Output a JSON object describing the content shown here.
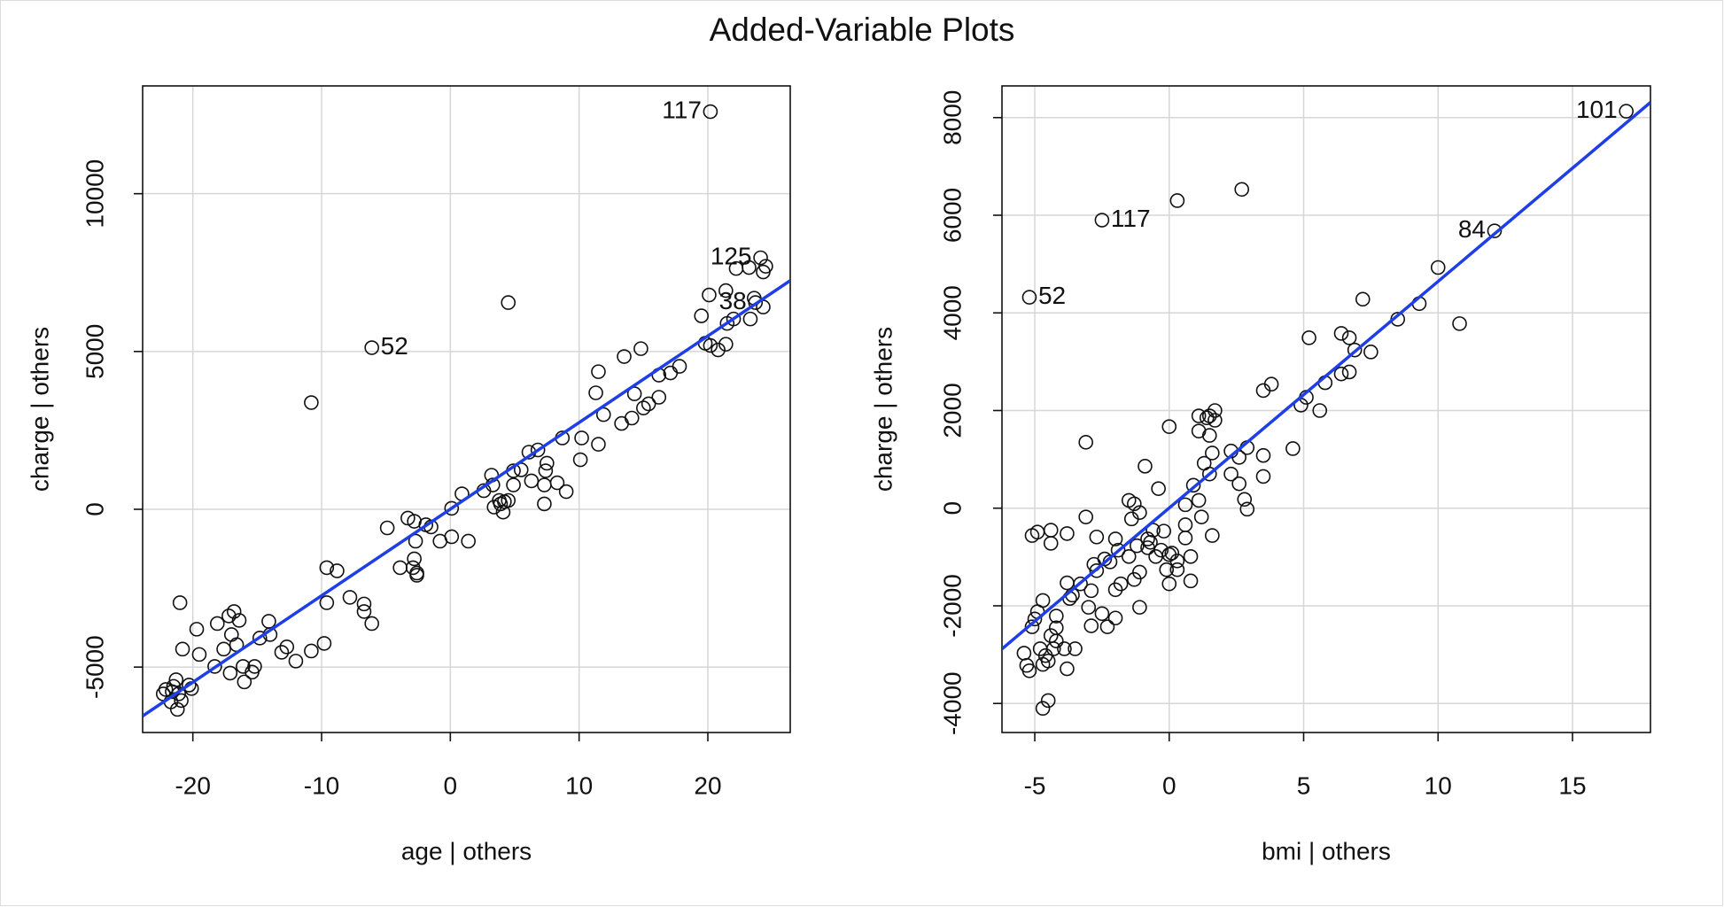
{
  "title": "Added-Variable Plots",
  "chart_data": [
    {
      "type": "scatter",
      "xlabel": "age | others",
      "ylabel": "charge  | others",
      "xlim": [
        -23.9,
        26.4
      ],
      "ylim": [
        -7073,
        13415
      ],
      "xticks": [
        -20,
        -10,
        0,
        10,
        20
      ],
      "yticks": [
        -5000,
        0,
        5000,
        10000
      ],
      "grid": true,
      "color": "#111111",
      "x": [
        20.2,
        -6.1,
        24.1,
        23.7,
        4.5,
        -10.8,
        23.2,
        22.2,
        24.5,
        24.3,
        21.4,
        20.1,
        23.6,
        19.5,
        21.5,
        24.3,
        23.3,
        22.0,
        19.8,
        20.2,
        20.8,
        21.4,
        14.8,
        13.5,
        11.5,
        17.8,
        17.1,
        16.2,
        11.3,
        14.3,
        16.2,
        15.4,
        15.0,
        11.9,
        14.1,
        13.3,
        11.5,
        10.2,
        8.7,
        10.1,
        6.8,
        6.1,
        4.9,
        5.5,
        7.5,
        7.4,
        8.3,
        6.3,
        7.3,
        4.9,
        3.2,
        3.3,
        2.6,
        9.0,
        0.9,
        3.8,
        4.2,
        4.5,
        3.4,
        3.9,
        4.1,
        7.3,
        0.1,
        1.4,
        0.1,
        -0.8,
        -3.3,
        -2.8,
        -1.9,
        -1.5,
        -4.9,
        -2.7,
        -2.8,
        -3.9,
        -2.9,
        -2.6,
        -2.6,
        -9.6,
        -8.8,
        -9.6,
        -7.8,
        -6.7,
        -6.7,
        -6.1,
        -9.8,
        -10.8,
        -12.0,
        -12.7,
        -13.1,
        -14.1,
        -14.0,
        -14.8,
        -15.2,
        -16.1,
        -16.0,
        -15.4,
        -16.8,
        -17.2,
        -16.4,
        -17.0,
        -16.6,
        -17.6,
        -18.1,
        -18.3,
        -17.1,
        -19.7,
        -19.5,
        -21.0,
        -20.8,
        -21.3,
        -20.3,
        -20.1,
        -21.1,
        -22.1,
        -22.3,
        -21.6,
        -21.7,
        -20.9,
        -21.2,
        -21.5
      ],
      "values": [
        12600,
        5120,
        7970,
        6550,
        6550,
        3380,
        7660,
        7630,
        7700,
        7520,
        6930,
        6790,
        6690,
        6130,
        5890,
        6410,
        6030,
        6030,
        5260,
        5190,
        5050,
        5230,
        5090,
        4840,
        4360,
        4530,
        4320,
        4250,
        3690,
        3660,
        3550,
        3340,
        3210,
        3000,
        2890,
        2720,
        2060,
        2260,
        2260,
        1570,
        1880,
        1810,
        1220,
        1250,
        1460,
        1220,
        840,
        900,
        770,
        770,
        1080,
        770,
        590,
        560,
        490,
        280,
        240,
        280,
        70,
        170,
        -90,
        170,
        30,
        -1010,
        -870,
        -1010,
        -280,
        -380,
        -490,
        -560,
        -590,
        -1010,
        -1570,
        -1850,
        -1850,
        -2020,
        -2090,
        -1850,
        -1950,
        -2960,
        -2790,
        -3000,
        -3240,
        -3620,
        -4250,
        -4490,
        -4810,
        -4360,
        -4530,
        -3550,
        -3970,
        -4080,
        -4980,
        -4980,
        -5470,
        -5160,
        -3240,
        -3380,
        -3520,
        -3970,
        -4290,
        -4430,
        -3620,
        -4980,
        -5190,
        -3800,
        -4600,
        -2960,
        -4430,
        -5400,
        -5570,
        -5680,
        -5850,
        -5710,
        -5850,
        -5780,
        -6100,
        -6060,
        -6340,
        -5610
      ],
      "labels": [
        "117",
        "52",
        "125",
        "38",
        null,
        null,
        null,
        null,
        null,
        null,
        null,
        null,
        null,
        null,
        null,
        null,
        null,
        null,
        null,
        null,
        null,
        null,
        null,
        null,
        null,
        null,
        null,
        null,
        null,
        null,
        null,
        null,
        null,
        null,
        null,
        null,
        null,
        null,
        null,
        null,
        null,
        null,
        null,
        null,
        null,
        null,
        null,
        null,
        null,
        null,
        null,
        null,
        null,
        null,
        null,
        null,
        null,
        null,
        null,
        null,
        null,
        null,
        null,
        null,
        null,
        null,
        null,
        null,
        null,
        null,
        null,
        null,
        null,
        null,
        null,
        null,
        null,
        null,
        null,
        null,
        null,
        null,
        null,
        null,
        null,
        null,
        null,
        null,
        null,
        null,
        null,
        null,
        null,
        null,
        null,
        null,
        null,
        null,
        null,
        null,
        null,
        null,
        null,
        null,
        null,
        null,
        null,
        null,
        null,
        null,
        null,
        null,
        null,
        null,
        null,
        null,
        null,
        null,
        null,
        null
      ],
      "fit_line": {
        "x": [
          -23.9,
          26.4
        ],
        "values": [
          -6550,
          7247
        ],
        "color": "#1f3fe6"
      }
    },
    {
      "type": "scatter",
      "xlabel": "bmi | others",
      "ylabel": "charge  | others",
      "xlim": [
        -6.22,
        17.9
      ],
      "ylim": [
        -4595,
        8649
      ],
      "xticks": [
        -5,
        0,
        5,
        10,
        15
      ],
      "yticks": [
        -4000,
        -2000,
        0,
        2000,
        4000,
        6000,
        8000
      ],
      "grid": true,
      "color": "#111111",
      "x": [
        17.0,
        -2.5,
        12.1,
        -5.2,
        0.3,
        2.7,
        10.0,
        7.2,
        9.3,
        10.8,
        8.5,
        5.2,
        6.4,
        6.7,
        6.9,
        7.5,
        6.7,
        6.4,
        5.8,
        3.8,
        3.5,
        5.1,
        4.9,
        5.6,
        4.6,
        1.7,
        1.5,
        1.1,
        1.7,
        1.4,
        0.0,
        1.1,
        1.5,
        -3.1,
        1.6,
        2.3,
        2.9,
        3.5,
        2.6,
        1.3,
        -0.9,
        1.5,
        2.3,
        3.5,
        0.9,
        2.6,
        -0.4,
        2.8,
        1.1,
        -1.5,
        -1.3,
        0.6,
        2.9,
        -1.1,
        -1.4,
        1.2,
        -3.1,
        0.6,
        1.6,
        -4.9,
        -5.1,
        -4.4,
        -3.8,
        -4.4,
        0.6,
        -2.7,
        -2.0,
        -0.6,
        -0.2,
        -0.8,
        -0.7,
        -0.8,
        -1.2,
        -1.9,
        -1.5,
        -2.4,
        -2.8,
        -2.7,
        -2.2,
        -0.3,
        0.0,
        0.3,
        0.1,
        -0.5,
        -0.1,
        0.3,
        0.8,
        0.8,
        -1.1,
        -1.3,
        0.0,
        -1.8,
        -2.0,
        -1.1,
        -3.8,
        -3.3,
        -2.9,
        -3.6,
        -3.7,
        -3.0,
        -2.5,
        -2.0,
        -2.3,
        -2.9,
        -4.7,
        -4.9,
        -5.0,
        -5.1,
        -4.2,
        -4.2,
        -4.2,
        -4.3,
        -4.4,
        -3.9,
        -3.5,
        -5.4,
        -4.8,
        -4.6,
        -4.5,
        -4.7,
        -5.3,
        -5.2,
        -3.8,
        -4.5,
        -4.7
      ],
      "values": [
        8130,
        5900,
        5680,
        4320,
        6300,
        6530,
        4930,
        4280,
        4190,
        3780,
        3870,
        3490,
        3580,
        3490,
        3240,
        3200,
        2790,
        2750,
        2570,
        2540,
        2410,
        2270,
        2110,
        2000,
        1220,
        2000,
        1890,
        1890,
        1800,
        1850,
        1670,
        1580,
        1490,
        1350,
        1130,
        1170,
        1240,
        1080,
        1040,
        920,
        860,
        700,
        700,
        650,
        470,
        500,
        400,
        180,
        160,
        160,
        90,
        70,
        -20,
        -90,
        -220,
        -180,
        -180,
        -340,
        -560,
        -490,
        -560,
        -450,
        -520,
        -720,
        -610,
        -590,
        -630,
        -450,
        -470,
        -630,
        -700,
        -810,
        -770,
        -860,
        -990,
        -1040,
        -1150,
        -1280,
        -1100,
        -860,
        -950,
        -1080,
        -920,
        -990,
        -1260,
        -1260,
        -990,
        -1490,
        -1310,
        -1460,
        -1550,
        -1550,
        -1670,
        -2030,
        -1530,
        -1550,
        -1690,
        -1780,
        -1850,
        -2030,
        -2160,
        -2250,
        -2430,
        -2410,
        -1890,
        -2120,
        -2270,
        -2430,
        -2210,
        -2450,
        -2720,
        -2880,
        -2610,
        -2880,
        -2880,
        -2970,
        -2880,
        -3020,
        -3130,
        -3200,
        -3220,
        -3330,
        -3290,
        -3940,
        -4100
      ],
      "labels": [
        "101",
        "117",
        "84",
        "52",
        null,
        null,
        null,
        null,
        null,
        null,
        null,
        null,
        null,
        null,
        null,
        null,
        null,
        null,
        null,
        null,
        null,
        null,
        null,
        null,
        null,
        null,
        null,
        null,
        null,
        null,
        null,
        null,
        null,
        null,
        null,
        null,
        null,
        null,
        null,
        null,
        null,
        null,
        null,
        null,
        null,
        null,
        null,
        null,
        null,
        null,
        null,
        null,
        null,
        null,
        null,
        null,
        null,
        null,
        null,
        null,
        null,
        null,
        null,
        null,
        null,
        null,
        null,
        null,
        null,
        null,
        null,
        null,
        null,
        null,
        null,
        null,
        null,
        null,
        null,
        null,
        null,
        null,
        null,
        null,
        null,
        null,
        null,
        null,
        null,
        null,
        null,
        null,
        null,
        null,
        null,
        null,
        null,
        null,
        null,
        null,
        null,
        null,
        null,
        null,
        null,
        null,
        null,
        null,
        null,
        null,
        null,
        null,
        null,
        null,
        null,
        null,
        null,
        null,
        null,
        null,
        null,
        null,
        null,
        null,
        null
      ],
      "fit_line": {
        "x": [
          -6.22,
          17.9
        ],
        "values": [
          -2883,
          8311
        ],
        "color": "#1f3fe6"
      }
    }
  ]
}
